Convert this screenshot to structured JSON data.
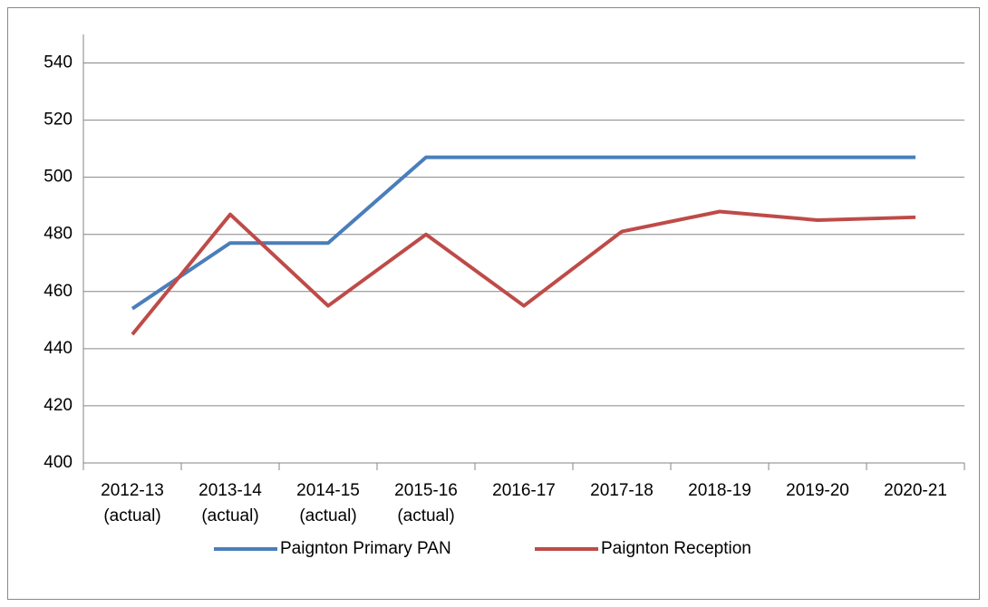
{
  "chart_data": {
    "type": "line",
    "categories": [
      "2012-13\n(actual)",
      "2013-14\n(actual)",
      "2014-15\n(actual)",
      "2015-16\n(actual)",
      "2016-17",
      "2017-18",
      "2018-19",
      "2019-20",
      "2020-21"
    ],
    "series": [
      {
        "name": "Paignton Primary PAN",
        "color": "#4a7ebb",
        "values": [
          454,
          477,
          477,
          507,
          507,
          507,
          507,
          507,
          507
        ]
      },
      {
        "name": "Paignton Reception",
        "color": "#be4b48",
        "values": [
          445,
          487,
          455,
          480,
          455,
          481,
          488,
          485,
          486
        ]
      }
    ],
    "ylim": [
      400,
      550
    ],
    "yticks": [
      400,
      420,
      440,
      460,
      480,
      500,
      520,
      540
    ],
    "grid": true,
    "legend": "bottom"
  }
}
